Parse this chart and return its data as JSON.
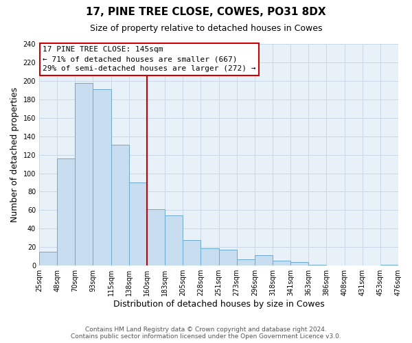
{
  "title": "17, PINE TREE CLOSE, COWES, PO31 8DX",
  "subtitle": "Size of property relative to detached houses in Cowes",
  "xlabel": "Distribution of detached houses by size in Cowes",
  "ylabel": "Number of detached properties",
  "footer_line1": "Contains HM Land Registry data © Crown copyright and database right 2024.",
  "footer_line2": "Contains public sector information licensed under the Open Government Licence v3.0.",
  "bin_labels": [
    "25sqm",
    "48sqm",
    "70sqm",
    "93sqm",
    "115sqm",
    "138sqm",
    "160sqm",
    "183sqm",
    "205sqm",
    "228sqm",
    "251sqm",
    "273sqm",
    "296sqm",
    "318sqm",
    "341sqm",
    "363sqm",
    "386sqm",
    "408sqm",
    "431sqm",
    "453sqm",
    "476sqm"
  ],
  "bar_heights": [
    15,
    116,
    198,
    191,
    131,
    90,
    61,
    54,
    28,
    19,
    17,
    7,
    11,
    5,
    4,
    1,
    0,
    0,
    0,
    1
  ],
  "bar_color": "#c9ddf0",
  "bar_edge_color": "#6aaad4",
  "vline_x": 6,
  "vline_color": "#cc0000",
  "annotation_title": "17 PINE TREE CLOSE: 145sqm",
  "annotation_line1": "← 71% of detached houses are smaller (667)",
  "annotation_line2": "29% of semi-detached houses are larger (272) →",
  "annotation_box_color": "#ffffff",
  "annotation_box_edge": "#cc0000",
  "ylim": [
    0,
    240
  ],
  "yticks": [
    0,
    20,
    40,
    60,
    80,
    100,
    120,
    140,
    160,
    180,
    200,
    220,
    240
  ],
  "grid_color": "#c8d8e8",
  "plot_bg_color": "#e8f0f8",
  "background_color": "#ffffff",
  "title_fontsize": 11,
  "subtitle_fontsize": 9,
  "axis_label_fontsize": 9,
  "tick_fontsize": 7,
  "footer_fontsize": 6.5,
  "annotation_fontsize": 8
}
